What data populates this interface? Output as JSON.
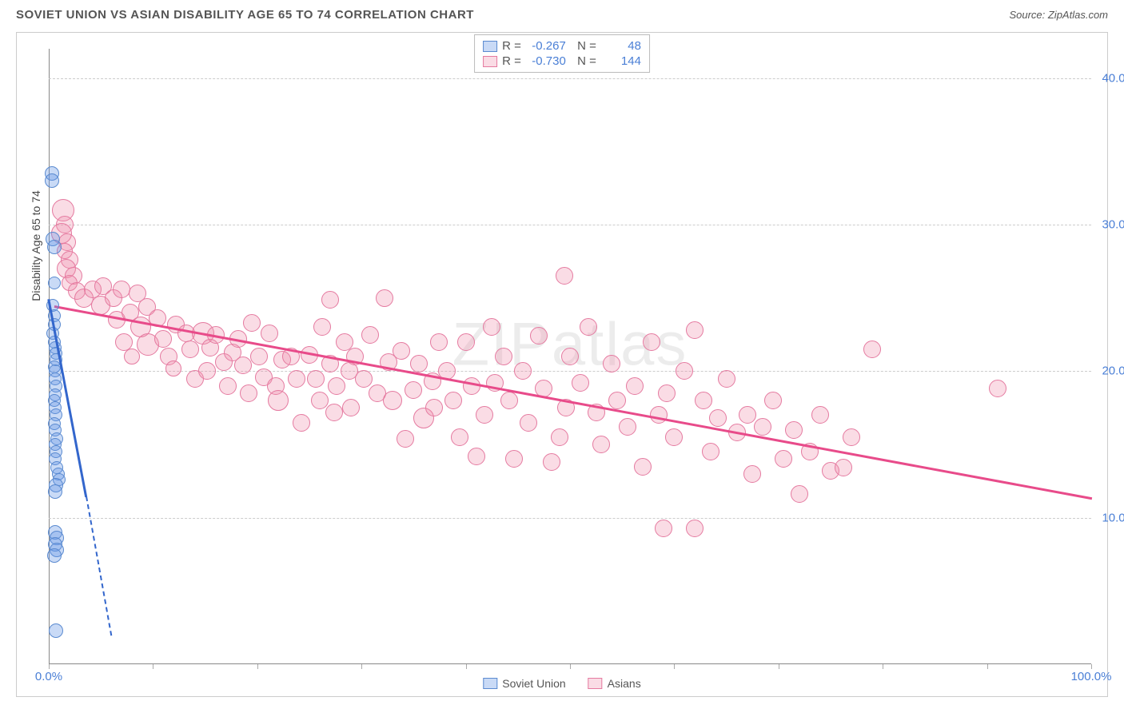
{
  "title": "SOVIET UNION VS ASIAN DISABILITY AGE 65 TO 74 CORRELATION CHART",
  "source": "Source: ZipAtlas.com",
  "watermark": "ZIPatlas",
  "ylabel": "Disability Age 65 to 74",
  "chart": {
    "type": "scatter",
    "xlim": [
      0,
      100
    ],
    "ylim": [
      0,
      42
    ],
    "x_ticks": [
      0,
      10,
      20,
      30,
      40,
      50,
      60,
      70,
      80,
      90,
      100
    ],
    "y_gridlines": [
      10,
      20,
      30,
      40
    ],
    "x_labels": [
      {
        "v": 0,
        "t": "0.0%"
      },
      {
        "v": 100,
        "t": "100.0%"
      }
    ],
    "y_labels": [
      {
        "v": 10,
        "t": "10.0%"
      },
      {
        "v": 20,
        "t": "20.0%"
      },
      {
        "v": 30,
        "t": "30.0%"
      },
      {
        "v": 40,
        "t": "40.0%"
      }
    ],
    "background_color": "#ffffff",
    "grid_color": "#cccccc",
    "axis_color": "#888888",
    "label_color": "#4a7fd6"
  },
  "series": {
    "soviet": {
      "label": "Soviet Union",
      "fill": "rgba(100,150,230,0.35)",
      "stroke": "#5a8ad0",
      "line_color": "#3366cc",
      "R": "-0.267",
      "N": "48",
      "trend": {
        "x1": 0,
        "y1": 25,
        "x2": 3.6,
        "y2": 11.5,
        "dash_ext": {
          "x2": 6,
          "y2": 2
        }
      },
      "points": [
        {
          "x": 0.3,
          "y": 33.5,
          "r": 9
        },
        {
          "x": 0.3,
          "y": 33,
          "r": 9
        },
        {
          "x": 0.4,
          "y": 29,
          "r": 9
        },
        {
          "x": 0.5,
          "y": 28.5,
          "r": 9
        },
        {
          "x": 0.5,
          "y": 26,
          "r": 8
        },
        {
          "x": 0.4,
          "y": 24.5,
          "r": 8
        },
        {
          "x": 0.5,
          "y": 23.8,
          "r": 8
        },
        {
          "x": 0.5,
          "y": 23.2,
          "r": 8
        },
        {
          "x": 0.4,
          "y": 22.6,
          "r": 8
        },
        {
          "x": 0.5,
          "y": 22.0,
          "r": 8
        },
        {
          "x": 0.6,
          "y": 21.6,
          "r": 8
        },
        {
          "x": 0.7,
          "y": 21.2,
          "r": 8
        },
        {
          "x": 0.7,
          "y": 20.8,
          "r": 8
        },
        {
          "x": 0.5,
          "y": 20.3,
          "r": 8
        },
        {
          "x": 0.6,
          "y": 20.0,
          "r": 8
        },
        {
          "x": 0.6,
          "y": 19.5,
          "r": 8
        },
        {
          "x": 0.7,
          "y": 19.0,
          "r": 8
        },
        {
          "x": 0.6,
          "y": 18.4,
          "r": 8
        },
        {
          "x": 0.5,
          "y": 18.0,
          "r": 8
        },
        {
          "x": 0.6,
          "y": 17.5,
          "r": 8
        },
        {
          "x": 0.7,
          "y": 17.0,
          "r": 8
        },
        {
          "x": 0.5,
          "y": 16.4,
          "r": 8
        },
        {
          "x": 0.6,
          "y": 16.0,
          "r": 8
        },
        {
          "x": 0.8,
          "y": 15.4,
          "r": 8
        },
        {
          "x": 0.6,
          "y": 15.0,
          "r": 8
        },
        {
          "x": 0.7,
          "y": 14.5,
          "r": 8
        },
        {
          "x": 0.6,
          "y": 14.0,
          "r": 8
        },
        {
          "x": 0.8,
          "y": 13.4,
          "r": 8
        },
        {
          "x": 0.9,
          "y": 13.0,
          "r": 8
        },
        {
          "x": 1.0,
          "y": 12.6,
          "r": 8
        },
        {
          "x": 0.7,
          "y": 12.2,
          "r": 9
        },
        {
          "x": 0.6,
          "y": 11.8,
          "r": 9
        },
        {
          "x": 0.6,
          "y": 9.0,
          "r": 9
        },
        {
          "x": 0.8,
          "y": 8.6,
          "r": 9
        },
        {
          "x": 0.6,
          "y": 8.2,
          "r": 9
        },
        {
          "x": 0.8,
          "y": 7.8,
          "r": 9
        },
        {
          "x": 0.5,
          "y": 7.4,
          "r": 9
        },
        {
          "x": 0.7,
          "y": 2.3,
          "r": 9
        }
      ]
    },
    "asians": {
      "label": "Asians",
      "fill": "rgba(240,140,170,0.30)",
      "stroke": "#e57aa0",
      "line_color": "#e84b8a",
      "R": "-0.730",
      "N": "144",
      "trend": {
        "x1": 0.5,
        "y1": 24.5,
        "x2": 100,
        "y2": 11.4
      },
      "points": [
        {
          "x": 1.4,
          "y": 31,
          "r": 14
        },
        {
          "x": 1.5,
          "y": 30,
          "r": 11
        },
        {
          "x": 1.2,
          "y": 29.4,
          "r": 13
        },
        {
          "x": 1.8,
          "y": 28.8,
          "r": 11
        },
        {
          "x": 1.5,
          "y": 28.2,
          "r": 10
        },
        {
          "x": 2.0,
          "y": 27.6,
          "r": 11
        },
        {
          "x": 1.7,
          "y": 27.0,
          "r": 12
        },
        {
          "x": 2.4,
          "y": 26.5,
          "r": 11
        },
        {
          "x": 2.0,
          "y": 26.0,
          "r": 10
        },
        {
          "x": 2.7,
          "y": 25.5,
          "r": 11
        },
        {
          "x": 3.4,
          "y": 25.0,
          "r": 12
        },
        {
          "x": 4.2,
          "y": 25.6,
          "r": 11
        },
        {
          "x": 5.2,
          "y": 25.8,
          "r": 11
        },
        {
          "x": 5.0,
          "y": 24.5,
          "r": 12
        },
        {
          "x": 6.2,
          "y": 25.0,
          "r": 11
        },
        {
          "x": 7.0,
          "y": 25.6,
          "r": 11
        },
        {
          "x": 8.5,
          "y": 25.3,
          "r": 11
        },
        {
          "x": 6.5,
          "y": 23.5,
          "r": 11
        },
        {
          "x": 7.2,
          "y": 22.0,
          "r": 11
        },
        {
          "x": 7.8,
          "y": 24.0,
          "r": 11
        },
        {
          "x": 8.0,
          "y": 21.0,
          "r": 10
        },
        {
          "x": 8.8,
          "y": 23.0,
          "r": 13
        },
        {
          "x": 9.4,
          "y": 24.4,
          "r": 11
        },
        {
          "x": 9.5,
          "y": 21.8,
          "r": 14
        },
        {
          "x": 10.4,
          "y": 23.6,
          "r": 11
        },
        {
          "x": 11.0,
          "y": 22.2,
          "r": 11
        },
        {
          "x": 11.5,
          "y": 21.0,
          "r": 11
        },
        {
          "x": 12.2,
          "y": 23.2,
          "r": 11
        },
        {
          "x": 12.0,
          "y": 20.2,
          "r": 10
        },
        {
          "x": 13.2,
          "y": 22.6,
          "r": 11
        },
        {
          "x": 13.6,
          "y": 21.5,
          "r": 11
        },
        {
          "x": 14.0,
          "y": 19.5,
          "r": 11
        },
        {
          "x": 14.8,
          "y": 22.6,
          "r": 14
        },
        {
          "x": 15.5,
          "y": 21.6,
          "r": 11
        },
        {
          "x": 15.2,
          "y": 20.0,
          "r": 11
        },
        {
          "x": 16.0,
          "y": 22.5,
          "r": 11
        },
        {
          "x": 16.8,
          "y": 20.6,
          "r": 11
        },
        {
          "x": 17.2,
          "y": 19.0,
          "r": 11
        },
        {
          "x": 17.6,
          "y": 21.3,
          "r": 11
        },
        {
          "x": 18.2,
          "y": 22.2,
          "r": 11
        },
        {
          "x": 18.6,
          "y": 20.4,
          "r": 11
        },
        {
          "x": 19.2,
          "y": 18.5,
          "r": 11
        },
        {
          "x": 19.5,
          "y": 23.3,
          "r": 11
        },
        {
          "x": 20.2,
          "y": 21.0,
          "r": 11
        },
        {
          "x": 20.6,
          "y": 19.6,
          "r": 11
        },
        {
          "x": 21.2,
          "y": 22.6,
          "r": 11
        },
        {
          "x": 21.8,
          "y": 19.0,
          "r": 11
        },
        {
          "x": 22.4,
          "y": 20.8,
          "r": 11
        },
        {
          "x": 22.0,
          "y": 18.0,
          "r": 13
        },
        {
          "x": 23.2,
          "y": 21.0,
          "r": 11
        },
        {
          "x": 23.8,
          "y": 19.5,
          "r": 11
        },
        {
          "x": 24.2,
          "y": 16.5,
          "r": 11
        },
        {
          "x": 25.0,
          "y": 21.1,
          "r": 11
        },
        {
          "x": 25.6,
          "y": 19.5,
          "r": 11
        },
        {
          "x": 26.2,
          "y": 23.0,
          "r": 11
        },
        {
          "x": 26.0,
          "y": 18.0,
          "r": 11
        },
        {
          "x": 27.0,
          "y": 20.5,
          "r": 11
        },
        {
          "x": 27.6,
          "y": 19.0,
          "r": 11
        },
        {
          "x": 27.4,
          "y": 17.2,
          "r": 11
        },
        {
          "x": 28.4,
          "y": 22.0,
          "r": 11
        },
        {
          "x": 28.8,
          "y": 20.0,
          "r": 11
        },
        {
          "x": 29.4,
          "y": 21.0,
          "r": 11
        },
        {
          "x": 29.0,
          "y": 17.5,
          "r": 11
        },
        {
          "x": 30.2,
          "y": 19.5,
          "r": 11
        },
        {
          "x": 30.8,
          "y": 22.5,
          "r": 11
        },
        {
          "x": 31.5,
          "y": 18.5,
          "r": 11
        },
        {
          "x": 27.0,
          "y": 24.9,
          "r": 11
        },
        {
          "x": 32.2,
          "y": 25.0,
          "r": 11
        },
        {
          "x": 32.6,
          "y": 20.6,
          "r": 11
        },
        {
          "x": 33.0,
          "y": 18.0,
          "r": 12
        },
        {
          "x": 33.8,
          "y": 21.4,
          "r": 11
        },
        {
          "x": 34.2,
          "y": 15.4,
          "r": 11
        },
        {
          "x": 35.0,
          "y": 18.7,
          "r": 11
        },
        {
          "x": 35.5,
          "y": 20.5,
          "r": 11
        },
        {
          "x": 36.0,
          "y": 16.8,
          "r": 13
        },
        {
          "x": 36.8,
          "y": 19.3,
          "r": 11
        },
        {
          "x": 37.4,
          "y": 22.0,
          "r": 11
        },
        {
          "x": 37.0,
          "y": 17.5,
          "r": 11
        },
        {
          "x": 38.2,
          "y": 20.0,
          "r": 11
        },
        {
          "x": 38.8,
          "y": 18.0,
          "r": 11
        },
        {
          "x": 39.4,
          "y": 15.5,
          "r": 11
        },
        {
          "x": 40.0,
          "y": 22.0,
          "r": 11
        },
        {
          "x": 40.6,
          "y": 19.0,
          "r": 11
        },
        {
          "x": 41.0,
          "y": 14.2,
          "r": 11
        },
        {
          "x": 41.8,
          "y": 17.0,
          "r": 11
        },
        {
          "x": 42.5,
          "y": 23.0,
          "r": 11
        },
        {
          "x": 42.8,
          "y": 19.2,
          "r": 11
        },
        {
          "x": 43.6,
          "y": 21.0,
          "r": 11
        },
        {
          "x": 44.2,
          "y": 18.0,
          "r": 11
        },
        {
          "x": 44.6,
          "y": 14.0,
          "r": 11
        },
        {
          "x": 45.5,
          "y": 20.0,
          "r": 11
        },
        {
          "x": 46.0,
          "y": 16.5,
          "r": 11
        },
        {
          "x": 47.0,
          "y": 22.4,
          "r": 11
        },
        {
          "x": 47.5,
          "y": 18.8,
          "r": 11
        },
        {
          "x": 48.2,
          "y": 13.8,
          "r": 11
        },
        {
          "x": 49.0,
          "y": 15.5,
          "r": 11
        },
        {
          "x": 49.6,
          "y": 17.5,
          "r": 11
        },
        {
          "x": 50.0,
          "y": 21.0,
          "r": 11
        },
        {
          "x": 49.5,
          "y": 26.5,
          "r": 11
        },
        {
          "x": 51.0,
          "y": 19.2,
          "r": 11
        },
        {
          "x": 51.8,
          "y": 23.0,
          "r": 11
        },
        {
          "x": 52.5,
          "y": 17.2,
          "r": 11
        },
        {
          "x": 53.0,
          "y": 15.0,
          "r": 11
        },
        {
          "x": 54.0,
          "y": 20.5,
          "r": 11
        },
        {
          "x": 54.5,
          "y": 18.0,
          "r": 11
        },
        {
          "x": 55.5,
          "y": 16.2,
          "r": 11
        },
        {
          "x": 56.2,
          "y": 19.0,
          "r": 11
        },
        {
          "x": 57.0,
          "y": 13.5,
          "r": 11
        },
        {
          "x": 57.8,
          "y": 22.0,
          "r": 11
        },
        {
          "x": 58.5,
          "y": 17.0,
          "r": 11
        },
        {
          "x": 59.3,
          "y": 18.5,
          "r": 11
        },
        {
          "x": 60.0,
          "y": 15.5,
          "r": 11
        },
        {
          "x": 61.0,
          "y": 20.0,
          "r": 11
        },
        {
          "x": 59.0,
          "y": 9.3,
          "r": 11
        },
        {
          "x": 62.0,
          "y": 22.8,
          "r": 11
        },
        {
          "x": 62.0,
          "y": 9.3,
          "r": 11
        },
        {
          "x": 62.8,
          "y": 18.0,
          "r": 11
        },
        {
          "x": 63.5,
          "y": 14.5,
          "r": 11
        },
        {
          "x": 64.2,
          "y": 16.8,
          "r": 11
        },
        {
          "x": 65.0,
          "y": 19.5,
          "r": 11
        },
        {
          "x": 66.0,
          "y": 15.8,
          "r": 11
        },
        {
          "x": 67.0,
          "y": 17.0,
          "r": 11
        },
        {
          "x": 67.5,
          "y": 13.0,
          "r": 11
        },
        {
          "x": 68.5,
          "y": 16.2,
          "r": 11
        },
        {
          "x": 69.5,
          "y": 18.0,
          "r": 11
        },
        {
          "x": 70.5,
          "y": 14.0,
          "r": 11
        },
        {
          "x": 71.5,
          "y": 16.0,
          "r": 11
        },
        {
          "x": 72.0,
          "y": 11.6,
          "r": 11
        },
        {
          "x": 73.0,
          "y": 14.5,
          "r": 11
        },
        {
          "x": 74.0,
          "y": 17.0,
          "r": 11
        },
        {
          "x": 75.0,
          "y": 13.2,
          "r": 11
        },
        {
          "x": 76.2,
          "y": 13.4,
          "r": 11
        },
        {
          "x": 77.0,
          "y": 15.5,
          "r": 11
        },
        {
          "x": 79.0,
          "y": 21.5,
          "r": 11
        },
        {
          "x": 91.0,
          "y": 18.8,
          "r": 11
        }
      ]
    }
  },
  "legend": {
    "items": [
      {
        "key": "soviet",
        "label": "Soviet Union"
      },
      {
        "key": "asians",
        "label": "Asians"
      }
    ]
  }
}
